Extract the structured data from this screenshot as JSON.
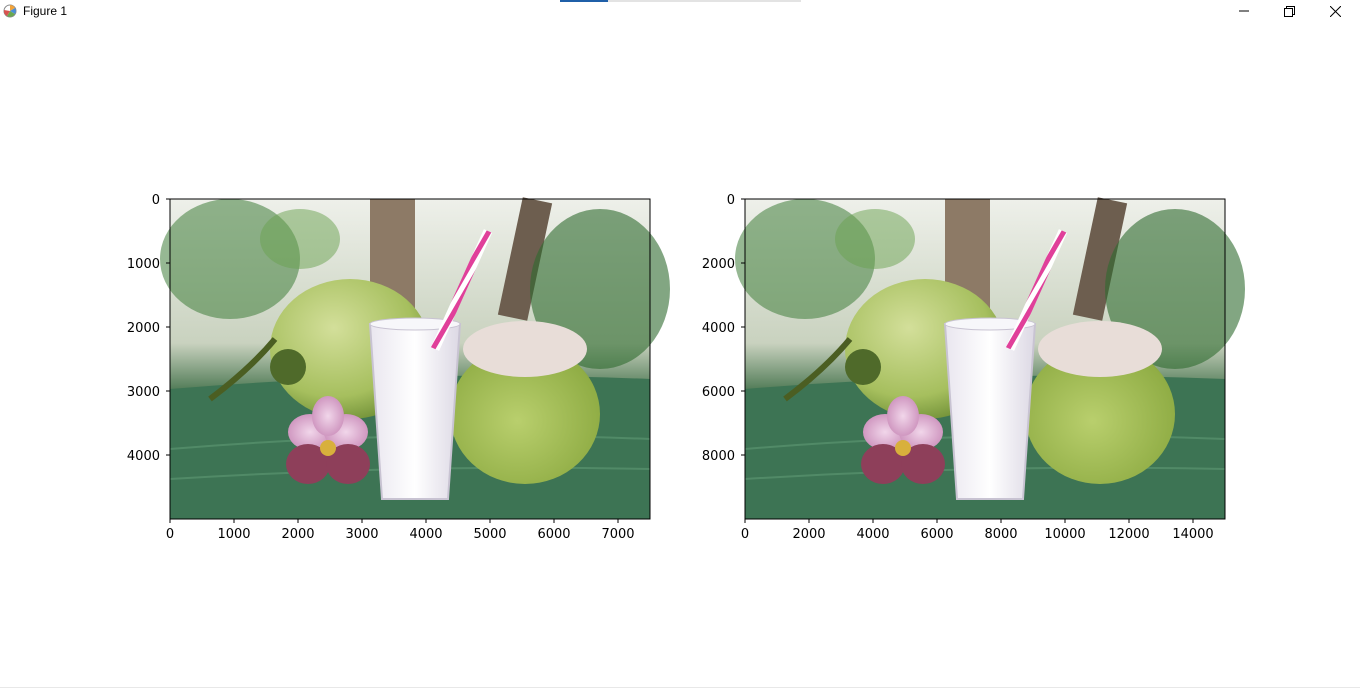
{
  "window": {
    "title": "Figure 1",
    "icon": "matplotlib-figure-icon",
    "controls": [
      "minimize-icon",
      "restore-icon",
      "close-icon"
    ]
  },
  "chart_data": [
    {
      "type": "image",
      "content": "coconut drink",
      "x_ticks": [
        "0",
        "1000",
        "2000",
        "3000",
        "4000",
        "5000",
        "6000",
        "7000"
      ],
      "y_ticks": [
        "0",
        "1000",
        "2000",
        "3000",
        "4000"
      ],
      "xlim": [
        0,
        7500
      ],
      "ylim": [
        5000,
        0
      ]
    },
    {
      "type": "image",
      "content": "coconut drink",
      "x_ticks": [
        "0",
        "2000",
        "4000",
        "6000",
        "8000",
        "10000",
        "12000",
        "14000"
      ],
      "y_ticks": [
        "0",
        "2000",
        "4000",
        "6000",
        "8000"
      ],
      "xlim": [
        0,
        15000
      ],
      "ylim": [
        10000,
        0
      ]
    }
  ]
}
